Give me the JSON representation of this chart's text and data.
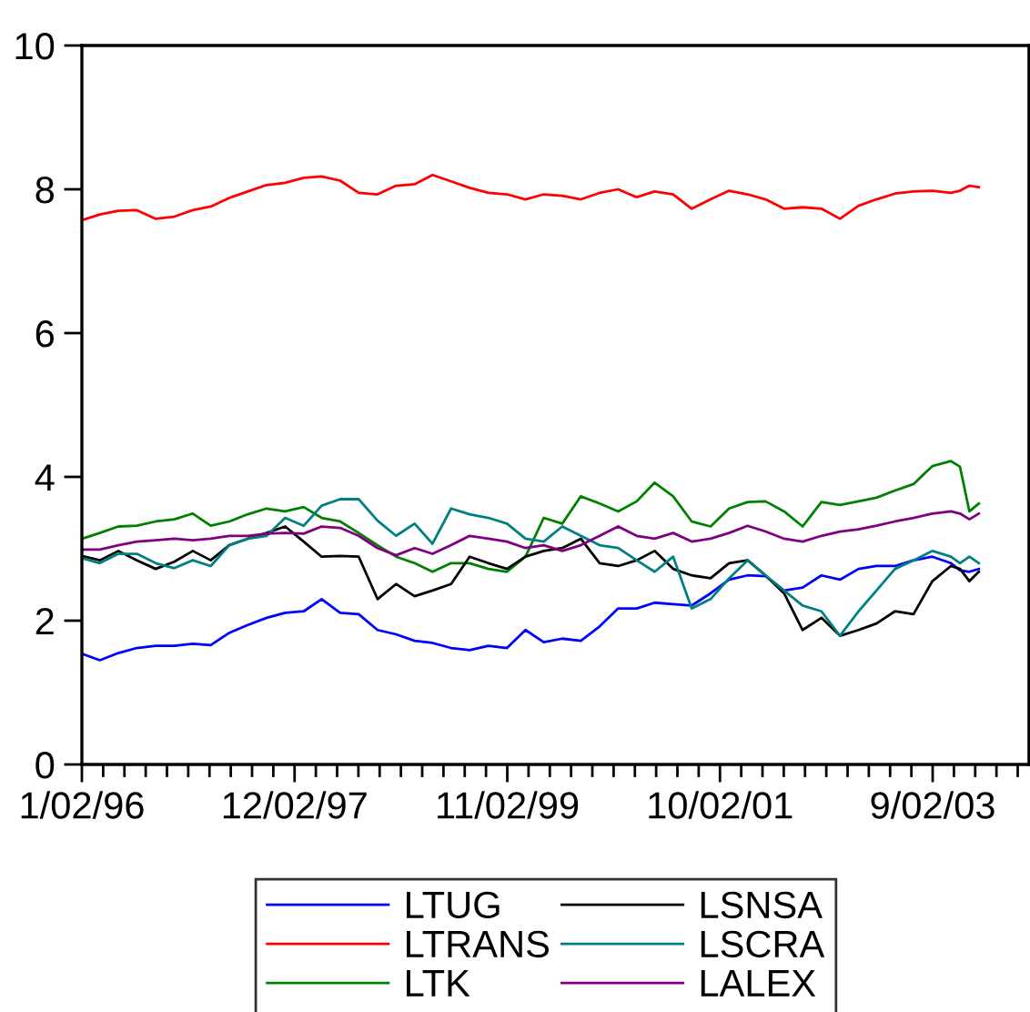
{
  "chart_data": {
    "type": "line",
    "x": [
      "1996-01-02",
      "1996-03",
      "1996-05",
      "1996-07",
      "1996-09",
      "1996-11",
      "1997-01",
      "1997-03",
      "1997-05",
      "1997-07",
      "1997-09",
      "1997-11",
      "1998-01",
      "1998-03",
      "1998-05",
      "1998-07",
      "1998-09",
      "1998-11",
      "1999-01",
      "1999-03",
      "1999-05",
      "1999-07",
      "1999-09",
      "1999-11",
      "2000-01",
      "2000-03",
      "2000-05",
      "2000-07",
      "2000-09",
      "2000-11",
      "2001-01",
      "2001-03",
      "2001-05",
      "2001-07",
      "2001-09",
      "2001-11",
      "2002-01",
      "2002-03",
      "2002-05",
      "2002-07",
      "2002-09",
      "2002-11",
      "2003-01",
      "2003-03",
      "2003-05",
      "2003-07",
      "2003-09",
      "2003-11",
      "2003-12",
      "2004-01",
      "2004-02"
    ],
    "series": [
      {
        "name": "LTUG",
        "color": "#0000ff",
        "values": [
          1.54,
          1.45,
          1.55,
          1.62,
          1.65,
          1.65,
          1.68,
          1.66,
          1.83,
          1.94,
          2.04,
          2.11,
          2.13,
          2.3,
          2.11,
          2.09,
          1.87,
          1.81,
          1.72,
          1.69,
          1.62,
          1.59,
          1.65,
          1.62,
          1.87,
          1.7,
          1.75,
          1.72,
          1.92,
          2.17,
          2.17,
          2.25,
          2.23,
          2.21,
          2.38,
          2.57,
          2.63,
          2.62,
          2.42,
          2.46,
          2.63,
          2.57,
          2.72,
          2.76,
          2.76,
          2.84,
          2.89,
          2.8,
          2.7,
          2.68,
          2.72
        ]
      },
      {
        "name": "LTRANS",
        "color": "#ff0000",
        "values": [
          7.57,
          7.65,
          7.7,
          7.71,
          7.59,
          7.62,
          7.71,
          7.76,
          7.88,
          7.97,
          8.06,
          8.09,
          8.16,
          8.18,
          8.12,
          7.95,
          7.93,
          8.05,
          8.07,
          8.2,
          8.11,
          8.02,
          7.95,
          7.93,
          7.86,
          7.93,
          7.91,
          7.86,
          7.95,
          8.0,
          7.89,
          7.97,
          7.93,
          7.73,
          7.86,
          7.98,
          7.93,
          7.86,
          7.73,
          7.75,
          7.73,
          7.59,
          7.77,
          7.86,
          7.94,
          7.97,
          7.98,
          7.95,
          7.98,
          8.05,
          8.03
        ]
      },
      {
        "name": "LTK",
        "color": "#008000",
        "values": [
          3.14,
          3.22,
          3.31,
          3.32,
          3.38,
          3.41,
          3.49,
          3.32,
          3.38,
          3.48,
          3.56,
          3.52,
          3.58,
          3.43,
          3.38,
          3.22,
          3.05,
          2.89,
          2.8,
          2.68,
          2.8,
          2.8,
          2.72,
          2.68,
          2.89,
          3.43,
          3.35,
          3.73,
          3.63,
          3.52,
          3.66,
          3.92,
          3.73,
          3.38,
          3.31,
          3.56,
          3.65,
          3.66,
          3.52,
          3.31,
          3.65,
          3.61,
          3.66,
          3.71,
          3.81,
          3.9,
          4.15,
          4.22,
          4.14,
          3.52,
          3.63
        ]
      },
      {
        "name": "LSNSA",
        "color": "#000000",
        "values": [
          2.9,
          2.84,
          2.97,
          2.84,
          2.72,
          2.82,
          2.97,
          2.84,
          3.05,
          3.14,
          3.22,
          3.31,
          3.1,
          2.89,
          2.9,
          2.89,
          2.3,
          2.51,
          2.34,
          2.42,
          2.51,
          2.89,
          2.8,
          2.72,
          2.89,
          2.97,
          3.01,
          3.14,
          2.8,
          2.76,
          2.84,
          2.97,
          2.72,
          2.63,
          2.59,
          2.8,
          2.84,
          2.63,
          2.38,
          1.87,
          2.04,
          1.79,
          1.87,
          1.96,
          2.13,
          2.09,
          2.55,
          2.76,
          2.72,
          2.55,
          2.68
        ]
      },
      {
        "name": "LSCRA",
        "color": "#008080",
        "values": [
          2.87,
          2.8,
          2.93,
          2.93,
          2.8,
          2.73,
          2.84,
          2.76,
          3.05,
          3.14,
          3.18,
          3.43,
          3.32,
          3.6,
          3.69,
          3.69,
          3.39,
          3.18,
          3.35,
          3.07,
          3.56,
          3.48,
          3.43,
          3.35,
          3.14,
          3.1,
          3.31,
          3.18,
          3.05,
          3.01,
          2.84,
          2.68,
          2.89,
          2.17,
          2.3,
          2.59,
          2.84,
          2.63,
          2.42,
          2.21,
          2.13,
          1.79,
          2.13,
          2.42,
          2.72,
          2.84,
          2.97,
          2.89,
          2.8,
          2.89,
          2.8
        ]
      },
      {
        "name": "LALEX",
        "color": "#800080",
        "values": [
          2.99,
          2.99,
          3.05,
          3.1,
          3.12,
          3.14,
          3.12,
          3.14,
          3.18,
          3.18,
          3.21,
          3.22,
          3.21,
          3.31,
          3.29,
          3.18,
          3.01,
          2.91,
          3.01,
          2.93,
          3.05,
          3.18,
          3.14,
          3.1,
          3.01,
          3.05,
          2.97,
          3.05,
          3.18,
          3.31,
          3.18,
          3.14,
          3.22,
          3.1,
          3.14,
          3.22,
          3.32,
          3.24,
          3.14,
          3.1,
          3.18,
          3.24,
          3.27,
          3.32,
          3.38,
          3.43,
          3.49,
          3.52,
          3.49,
          3.41,
          3.49
        ]
      }
    ],
    "xlim": [
      "1996-01-02",
      "2004-07-15"
    ],
    "xticks": [
      {
        "value": "1996-01-02",
        "label": "1/02/96"
      },
      {
        "value": "1996-03-12",
        "label": null
      },
      {
        "value": "1996-05-21",
        "label": null
      },
      {
        "value": "1996-07-30",
        "label": null
      },
      {
        "value": "1996-10-08",
        "label": null
      },
      {
        "value": "1996-12-17",
        "label": null
      },
      {
        "value": "1997-02-25",
        "label": null
      },
      {
        "value": "1997-05-06",
        "label": null
      },
      {
        "value": "1997-07-15",
        "label": null
      },
      {
        "value": "1997-09-23",
        "label": null
      },
      {
        "value": "1997-12-02",
        "label": "12/02/97"
      },
      {
        "value": "1998-02-10",
        "label": null
      },
      {
        "value": "1998-04-21",
        "label": null
      },
      {
        "value": "1998-06-30",
        "label": null
      },
      {
        "value": "1998-09-08",
        "label": null
      },
      {
        "value": "1998-11-17",
        "label": null
      },
      {
        "value": "1999-01-26",
        "label": null
      },
      {
        "value": "1999-04-06",
        "label": null
      },
      {
        "value": "1999-06-15",
        "label": null
      },
      {
        "value": "1999-08-24",
        "label": null
      },
      {
        "value": "1999-11-02",
        "label": "11/02/99"
      },
      {
        "value": "2000-01-11",
        "label": null
      },
      {
        "value": "2000-03-21",
        "label": null
      },
      {
        "value": "2000-05-30",
        "label": null
      },
      {
        "value": "2000-08-08",
        "label": null
      },
      {
        "value": "2000-10-17",
        "label": null
      },
      {
        "value": "2000-12-26",
        "label": null
      },
      {
        "value": "2001-03-06",
        "label": null
      },
      {
        "value": "2001-05-15",
        "label": null
      },
      {
        "value": "2001-07-24",
        "label": null
      },
      {
        "value": "2001-10-02",
        "label": "10/02/01"
      },
      {
        "value": "2001-12-11",
        "label": null
      },
      {
        "value": "2002-02-19",
        "label": null
      },
      {
        "value": "2002-04-30",
        "label": null
      },
      {
        "value": "2002-07-09",
        "label": null
      },
      {
        "value": "2002-09-17",
        "label": null
      },
      {
        "value": "2002-11-26",
        "label": null
      },
      {
        "value": "2003-02-04",
        "label": null
      },
      {
        "value": "2003-04-15",
        "label": null
      },
      {
        "value": "2003-06-24",
        "label": null
      },
      {
        "value": "2003-09-02",
        "label": "9/02/03"
      },
      {
        "value": "2003-11-11",
        "label": null
      },
      {
        "value": "2004-01-20",
        "label": null
      },
      {
        "value": "2004-03-30",
        "label": null
      },
      {
        "value": "2004-06-08",
        "label": null
      }
    ],
    "ylim": [
      0,
      10
    ],
    "yticks": [
      0,
      2,
      4,
      6,
      8,
      10
    ],
    "grid": false,
    "legend": "bottom",
    "marker": "none",
    "line_style": "solid"
  }
}
